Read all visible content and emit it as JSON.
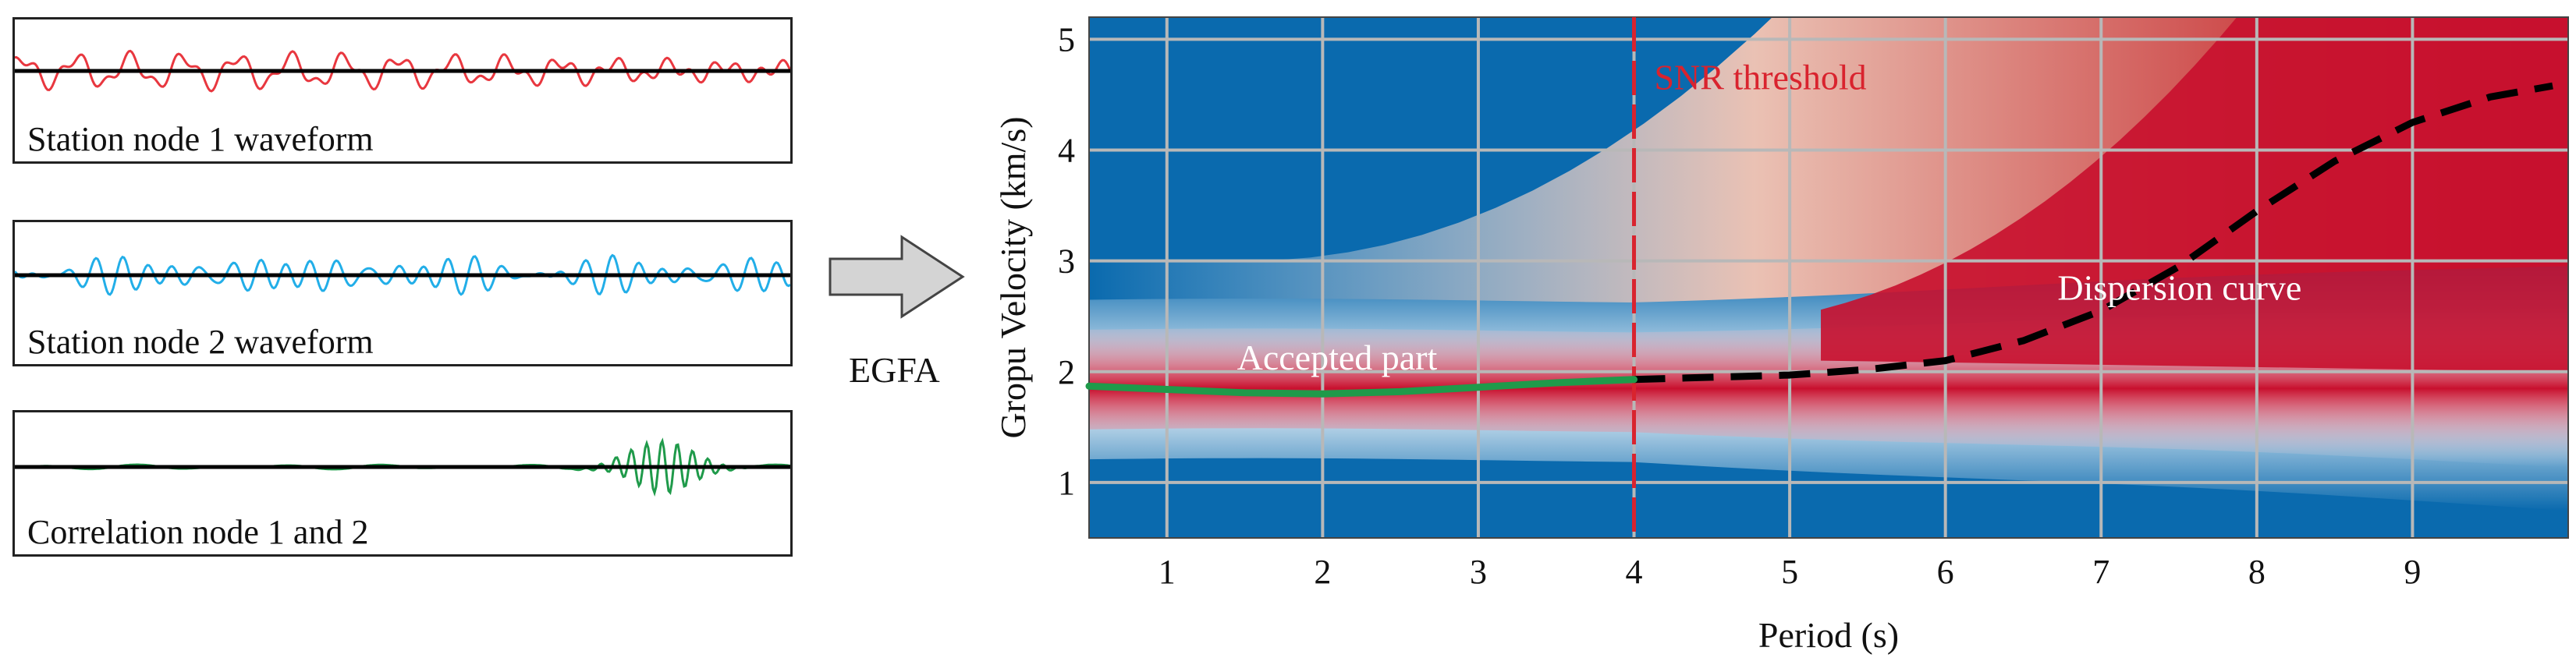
{
  "panels": [
    {
      "label": "Station node 1 waveform",
      "color": "#e8373f"
    },
    {
      "label": "Station node 2 waveform",
      "color": "#22aee8"
    },
    {
      "label": "Correlation node 1 and 2",
      "color": "#1f9a4a"
    }
  ],
  "arrow_label": "EGFA",
  "chart_data": {
    "type": "heatmap",
    "xlabel": "Period (s)",
    "ylabel": "Gropu Velocity (km/s)",
    "xlim": [
      0.5,
      10.0
    ],
    "ylim": [
      0.5,
      5.2
    ],
    "x_ticks": [
      1,
      2,
      3,
      4,
      5,
      6,
      7,
      8,
      9
    ],
    "y_ticks": [
      1,
      2,
      3,
      4,
      5
    ],
    "grid": true,
    "colors": {
      "background": "#0a6aae",
      "high": "#c8102e",
      "mid": "#ffffff",
      "grid": "#b8b8b8"
    },
    "snr_threshold": {
      "x": 4.0,
      "label": "SNR threshold",
      "color": "#d9232e"
    },
    "accepted_part": {
      "label": "Accepted part",
      "color": "#1f9a4a",
      "x": [
        0.5,
        1.0,
        1.5,
        2.0,
        2.5,
        3.0,
        3.5,
        4.0
      ],
      "y": [
        1.87,
        1.84,
        1.81,
        1.8,
        1.82,
        1.86,
        1.9,
        1.93
      ]
    },
    "dispersion_curve": {
      "label": "Dispersion curve",
      "color": "#000000",
      "x": [
        4.0,
        4.5,
        5.0,
        5.5,
        6.0,
        6.5,
        7.0,
        7.5,
        8.0,
        8.5,
        9.0,
        9.5,
        9.9
      ],
      "y": [
        1.93,
        1.95,
        1.97,
        2.02,
        2.1,
        2.28,
        2.55,
        2.95,
        3.45,
        3.9,
        4.25,
        4.48,
        4.58
      ]
    }
  }
}
